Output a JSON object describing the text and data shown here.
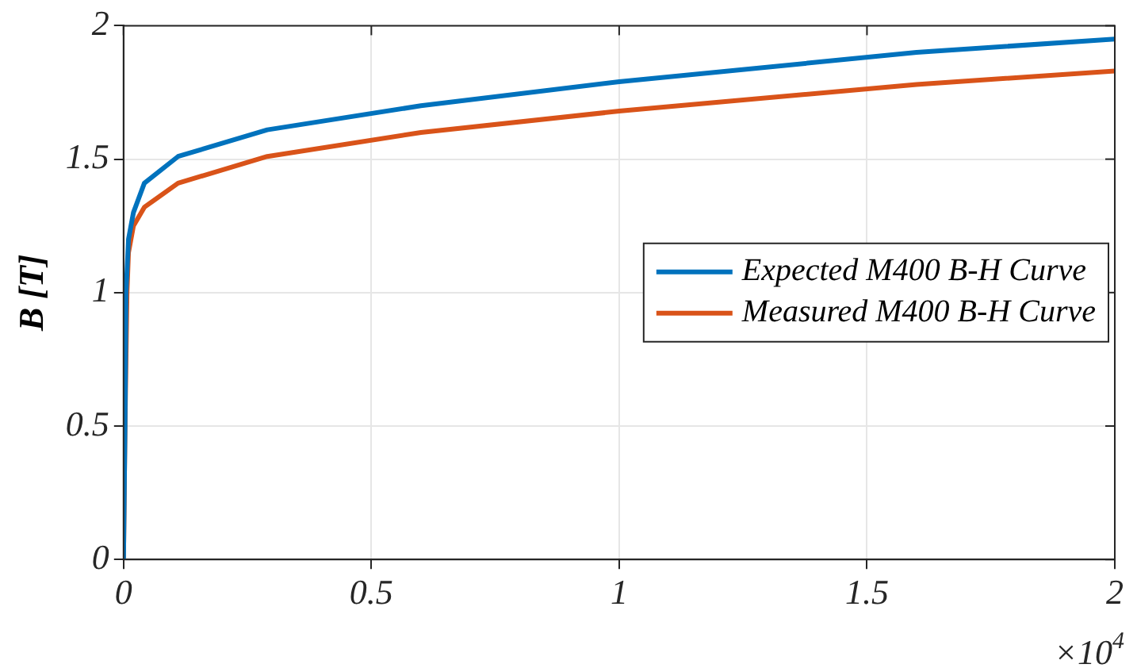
{
  "chart_data": {
    "type": "line",
    "ylabel": "B [T]",
    "annotations": [
      "×10$^{4}$"
    ],
    "xlim": [
      0,
      2
    ],
    "xticks": [
      0,
      0.5,
      1,
      1.5,
      2
    ],
    "ylim": [
      0,
      2
    ],
    "yticks": [
      0,
      0.5,
      1,
      1.5,
      2
    ],
    "grid": true,
    "legend": "right",
    "marker": "none",
    "line_style": "solid",
    "series": [
      {
        "name": "Expected M400 B-H Curve",
        "color": "#0072bd",
        "x": [
          0,
          0.003,
          0.005,
          0.01,
          0.02,
          0.042,
          0.11,
          0.29,
          0.6,
          1,
          1.6,
          2
        ],
        "values": [
          0,
          0.5,
          1.0,
          1.2,
          1.3,
          1.41,
          1.51,
          1.61,
          1.7,
          1.79,
          1.9,
          1.95
        ]
      },
      {
        "name": "Measured M400 B-H Curve",
        "color": "#d95319",
        "x": [
          0,
          0.003,
          0.007,
          0.01,
          0.02,
          0.042,
          0.11,
          0.29,
          0.6,
          1,
          1.6,
          2
        ],
        "values": [
          0,
          0.5,
          1.0,
          1.15,
          1.25,
          1.32,
          1.41,
          1.51,
          1.6,
          1.68,
          1.78,
          1.83
        ]
      }
    ]
  }
}
